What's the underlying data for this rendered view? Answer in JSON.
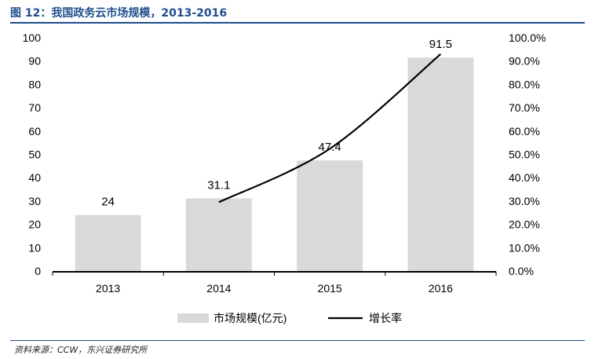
{
  "header": {
    "title": "图 12：我国政务云市场规模，2013-2016"
  },
  "footer": {
    "source": "资料来源：CCW，东兴证券研究所"
  },
  "chart_data": {
    "type": "bar",
    "categories": [
      "2013",
      "2014",
      "2015",
      "2016"
    ],
    "series": [
      {
        "name": "市场规模(亿元)",
        "type": "bar",
        "axis": "left",
        "values": [
          24,
          31.1,
          47.4,
          91.5
        ],
        "color": "#d9d9d9"
      },
      {
        "name": "增长率",
        "type": "line",
        "axis": "right",
        "values": [
          null,
          0.295,
          0.524,
          0.93
        ],
        "color": "#000000"
      }
    ],
    "data_labels": [
      "24",
      "31.1",
      "47.4",
      "91.5"
    ],
    "y_left": {
      "ylim": [
        0,
        100
      ],
      "ticks": [
        "0",
        "10",
        "20",
        "30",
        "40",
        "50",
        "60",
        "70",
        "80",
        "90",
        "100"
      ]
    },
    "y_right": {
      "ylim": [
        0,
        1
      ],
      "ticks": [
        "0.0%",
        "10.0%",
        "20.0%",
        "30.0%",
        "40.0%",
        "50.0%",
        "60.0%",
        "70.0%",
        "80.0%",
        "90.0%",
        "100.0%"
      ]
    },
    "grid": false,
    "legend_position": "bottom"
  }
}
